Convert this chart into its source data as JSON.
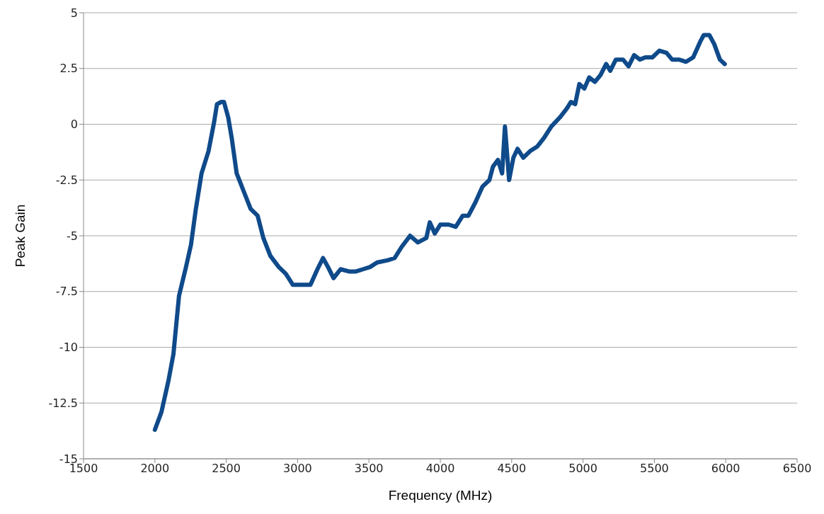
{
  "chart_data": {
    "type": "line",
    "xlabel": "Frequency (MHz)",
    "ylabel": "Peak Gain",
    "xlim": [
      1500,
      6500
    ],
    "xticks": [
      1500,
      2000,
      2500,
      3000,
      3500,
      4000,
      4500,
      5000,
      5500,
      6000,
      6500
    ],
    "ylim": [
      -15,
      5
    ],
    "yticks": [
      -15,
      -12.5,
      -10,
      -7.5,
      -5,
      -2.5,
      0,
      2.5,
      5
    ],
    "grid": "y",
    "legend": false,
    "marker": "none",
    "line_style": "solid",
    "x": [
      2000,
      2046,
      2095,
      2130,
      2169,
      2218,
      2253,
      2287,
      2327,
      2376,
      2415,
      2435,
      2465,
      2484,
      2514,
      2538,
      2573,
      2622,
      2671,
      2720,
      2760,
      2809,
      2868,
      2917,
      2967,
      3040,
      3090,
      3139,
      3178,
      3213,
      3252,
      3301,
      3360,
      3409,
      3459,
      3508,
      3557,
      3631,
      3680,
      3729,
      3788,
      3843,
      3902,
      3926,
      3961,
      4000,
      4059,
      4108,
      4157,
      4197,
      4246,
      4295,
      4344,
      4369,
      4404,
      4433,
      4453,
      4482,
      4512,
      4541,
      4581,
      4630,
      4679,
      4728,
      4778,
      4837,
      4886,
      4915,
      4945,
      4974,
      5009,
      5043,
      5083,
      5122,
      5162,
      5191,
      5230,
      5280,
      5319,
      5358,
      5398,
      5437,
      5486,
      5535,
      5585,
      5624,
      5673,
      5722,
      5772,
      5821,
      5846,
      5885,
      5919,
      5959,
      5993
    ],
    "series": [
      {
        "color": "#0f4a8a",
        "values": [
          -13.7,
          -12.9,
          -11.5,
          -10.3,
          -7.7,
          -6.4,
          -5.4,
          -3.8,
          -2.2,
          -1.2,
          0.1,
          0.9,
          1,
          1,
          0.3,
          -0.6,
          -2.2,
          -3,
          -3.8,
          -4.1,
          -5.1,
          -5.9,
          -6.4,
          -6.7,
          -7.2,
          -7.2,
          -7.2,
          -6.5,
          -6,
          -6.4,
          -6.9,
          -6.5,
          -6.6,
          -6.6,
          -6.5,
          -6.4,
          -6.2,
          -6.1,
          -6,
          -5.5,
          -5,
          -5.3,
          -5.1,
          -4.4,
          -4.9,
          -4.5,
          -4.5,
          -4.6,
          -4.1,
          -4.1,
          -3.5,
          -2.8,
          -2.5,
          -1.9,
          -1.6,
          -2.2,
          -0.1,
          -2.5,
          -1.5,
          -1.1,
          -1.5,
          -1.2,
          -1,
          -0.6,
          -0.1,
          0.3,
          0.7,
          1,
          0.9,
          1.8,
          1.6,
          2.1,
          1.9,
          2.2,
          2.7,
          2.4,
          2.9,
          2.9,
          2.6,
          3.1,
          2.9,
          3,
          3,
          3.3,
          3.2,
          2.9,
          2.9,
          2.8,
          3,
          3.7,
          4,
          4,
          3.6,
          2.9,
          2.7
        ]
      }
    ]
  }
}
